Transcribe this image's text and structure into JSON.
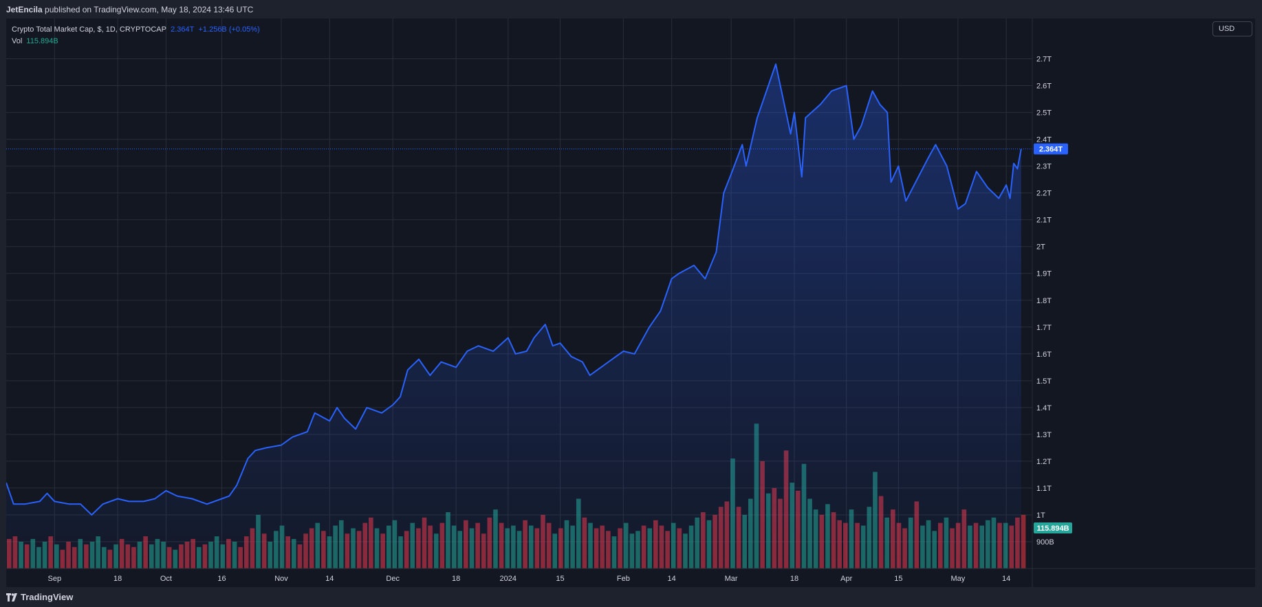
{
  "header": {
    "author": "JetEncila",
    "published_text": "published on TradingView.com, May 18, 2024 13:46 UTC"
  },
  "legend": {
    "symbol": "Crypto Total Market Cap, $, 1D, CRYPTOCAP",
    "last_value": "2.364T",
    "change": "+1.256B (+0.05%)",
    "vol_label": "Vol",
    "vol_value": "115.894B"
  },
  "currency_button": "USD",
  "footer": {
    "brand": "TradingView"
  },
  "colors": {
    "background": "#131722",
    "line": "#2962ff",
    "volume_up": "#22ab94",
    "volume_down": "#f23645",
    "grid": "#2a2e39",
    "text": "#d1d4dc"
  },
  "chart_data": {
    "type": "area",
    "title": "Crypto Total Market Cap, $, 1D, CRYPTOCAP",
    "y_unit": "T",
    "ylim": [
      0.8,
      2.85
    ],
    "y_ticks": [
      0.9,
      1,
      1.1,
      1.2,
      1.3,
      1.4,
      1.5,
      1.6,
      1.7,
      1.8,
      1.9,
      2,
      2.1,
      2.2,
      2.3,
      2.4,
      2.5,
      2.6,
      2.7
    ],
    "y_tick_labels": [
      "900B",
      "1T",
      "1.1T",
      "1.2T",
      "1.3T",
      "1.4T",
      "1.5T",
      "1.6T",
      "1.7T",
      "1.8T",
      "1.9T",
      "2T",
      "2.1T",
      "2.2T",
      "2.3T",
      "2.4T",
      "2.5T",
      "2.6T",
      "2.7T"
    ],
    "x_ticks": [
      {
        "date": "2023-09-01",
        "label": "Sep"
      },
      {
        "date": "2023-09-18",
        "label": "18"
      },
      {
        "date": "2023-10-01",
        "label": "Oct"
      },
      {
        "date": "2023-10-16",
        "label": "16"
      },
      {
        "date": "2023-11-01",
        "label": "Nov"
      },
      {
        "date": "2023-11-14",
        "label": "14"
      },
      {
        "date": "2023-12-01",
        "label": "Dec"
      },
      {
        "date": "2023-12-18",
        "label": "18"
      },
      {
        "date": "2024-01-01",
        "label": "2024"
      },
      {
        "date": "2024-01-15",
        "label": "15"
      },
      {
        "date": "2024-02-01",
        "label": "Feb"
      },
      {
        "date": "2024-02-14",
        "label": "14"
      },
      {
        "date": "2024-03-01",
        "label": "Mar"
      },
      {
        "date": "2024-03-18",
        "label": "18"
      },
      {
        "date": "2024-04-01",
        "label": "Apr"
      },
      {
        "date": "2024-04-15",
        "label": "15"
      },
      {
        "date": "2024-05-01",
        "label": "May"
      },
      {
        "date": "2024-05-14",
        "label": "14"
      }
    ],
    "x_start": "2023-08-19",
    "x_end": "2024-05-21",
    "last_price_label": "2.364T",
    "last_volume_label": "115.894B",
    "series": [
      {
        "name": "Crypto Total Market Cap",
        "kind": "line",
        "points": [
          [
            "2023-08-19",
            1.12
          ],
          [
            "2023-08-21",
            1.04
          ],
          [
            "2023-08-24",
            1.04
          ],
          [
            "2023-08-28",
            1.05
          ],
          [
            "2023-08-30",
            1.08
          ],
          [
            "2023-09-01",
            1.05
          ],
          [
            "2023-09-05",
            1.04
          ],
          [
            "2023-09-08",
            1.04
          ],
          [
            "2023-09-11",
            1.0
          ],
          [
            "2023-09-14",
            1.04
          ],
          [
            "2023-09-18",
            1.06
          ],
          [
            "2023-09-21",
            1.05
          ],
          [
            "2023-09-25",
            1.05
          ],
          [
            "2023-09-28",
            1.06
          ],
          [
            "2023-10-01",
            1.09
          ],
          [
            "2023-10-04",
            1.07
          ],
          [
            "2023-10-08",
            1.06
          ],
          [
            "2023-10-12",
            1.04
          ],
          [
            "2023-10-16",
            1.06
          ],
          [
            "2023-10-18",
            1.07
          ],
          [
            "2023-10-20",
            1.11
          ],
          [
            "2023-10-23",
            1.21
          ],
          [
            "2023-10-25",
            1.24
          ],
          [
            "2023-10-28",
            1.25
          ],
          [
            "2023-11-01",
            1.26
          ],
          [
            "2023-11-04",
            1.29
          ],
          [
            "2023-11-08",
            1.31
          ],
          [
            "2023-11-10",
            1.38
          ],
          [
            "2023-11-14",
            1.35
          ],
          [
            "2023-11-16",
            1.4
          ],
          [
            "2023-11-18",
            1.36
          ],
          [
            "2023-11-21",
            1.32
          ],
          [
            "2023-11-24",
            1.4
          ],
          [
            "2023-11-28",
            1.38
          ],
          [
            "2023-12-01",
            1.41
          ],
          [
            "2023-12-03",
            1.44
          ],
          [
            "2023-12-05",
            1.54
          ],
          [
            "2023-12-08",
            1.58
          ],
          [
            "2023-12-11",
            1.52
          ],
          [
            "2023-12-14",
            1.57
          ],
          [
            "2023-12-18",
            1.55
          ],
          [
            "2023-12-21",
            1.61
          ],
          [
            "2023-12-24",
            1.63
          ],
          [
            "2023-12-28",
            1.61
          ],
          [
            "2024-01-01",
            1.66
          ],
          [
            "2024-01-03",
            1.6
          ],
          [
            "2024-01-06",
            1.61
          ],
          [
            "2024-01-08",
            1.66
          ],
          [
            "2024-01-11",
            1.71
          ],
          [
            "2024-01-13",
            1.63
          ],
          [
            "2024-01-15",
            1.64
          ],
          [
            "2024-01-18",
            1.59
          ],
          [
            "2024-01-21",
            1.57
          ],
          [
            "2024-01-23",
            1.52
          ],
          [
            "2024-01-25",
            1.54
          ],
          [
            "2024-01-28",
            1.57
          ],
          [
            "2024-02-01",
            1.61
          ],
          [
            "2024-02-04",
            1.6
          ],
          [
            "2024-02-08",
            1.7
          ],
          [
            "2024-02-11",
            1.76
          ],
          [
            "2024-02-14",
            1.88
          ],
          [
            "2024-02-16",
            1.9
          ],
          [
            "2024-02-20",
            1.93
          ],
          [
            "2024-02-23",
            1.88
          ],
          [
            "2024-02-26",
            1.98
          ],
          [
            "2024-02-28",
            2.2
          ],
          [
            "2024-03-01",
            2.27
          ],
          [
            "2024-03-04",
            2.38
          ],
          [
            "2024-03-05",
            2.3
          ],
          [
            "2024-03-08",
            2.48
          ],
          [
            "2024-03-11",
            2.6
          ],
          [
            "2024-03-13",
            2.68
          ],
          [
            "2024-03-15",
            2.55
          ],
          [
            "2024-03-17",
            2.42
          ],
          [
            "2024-03-18",
            2.5
          ],
          [
            "2024-03-20",
            2.26
          ],
          [
            "2024-03-21",
            2.48
          ],
          [
            "2024-03-25",
            2.53
          ],
          [
            "2024-03-28",
            2.58
          ],
          [
            "2024-04-01",
            2.6
          ],
          [
            "2024-04-03",
            2.4
          ],
          [
            "2024-04-05",
            2.45
          ],
          [
            "2024-04-08",
            2.58
          ],
          [
            "2024-04-10",
            2.53
          ],
          [
            "2024-04-12",
            2.5
          ],
          [
            "2024-04-13",
            2.24
          ],
          [
            "2024-04-15",
            2.3
          ],
          [
            "2024-04-17",
            2.17
          ],
          [
            "2024-04-20",
            2.25
          ],
          [
            "2024-04-23",
            2.33
          ],
          [
            "2024-04-25",
            2.38
          ],
          [
            "2024-04-28",
            2.3
          ],
          [
            "2024-05-01",
            2.14
          ],
          [
            "2024-05-03",
            2.16
          ],
          [
            "2024-05-06",
            2.28
          ],
          [
            "2024-05-09",
            2.22
          ],
          [
            "2024-05-12",
            2.18
          ],
          [
            "2024-05-14",
            2.23
          ],
          [
            "2024-05-15",
            2.18
          ],
          [
            "2024-05-16",
            2.31
          ],
          [
            "2024-05-17",
            2.29
          ],
          [
            "2024-05-18",
            2.364
          ]
        ]
      },
      {
        "name": "Vol",
        "kind": "bar",
        "values": [
          0.91,
          0.92,
          0.9,
          0.89,
          0.91,
          0.88,
          0.9,
          0.92,
          0.89,
          0.87,
          0.9,
          0.88,
          0.91,
          0.89,
          0.9,
          0.92,
          0.88,
          0.87,
          0.89,
          0.91,
          0.89,
          0.88,
          0.9,
          0.92,
          0.89,
          0.91,
          0.9,
          0.88,
          0.87,
          0.89,
          0.9,
          0.91,
          0.88,
          0.89,
          0.9,
          0.92,
          0.89,
          0.91,
          0.9,
          0.88,
          0.92,
          0.95,
          1.0,
          0.93,
          0.9,
          0.94,
          0.96,
          0.92,
          0.91,
          0.89,
          0.93,
          0.95,
          0.97,
          0.94,
          0.92,
          0.96,
          0.98,
          0.93,
          0.95,
          0.94,
          0.97,
          0.99,
          0.95,
          0.93,
          0.96,
          0.98,
          0.92,
          0.94,
          0.97,
          0.95,
          0.99,
          0.96,
          0.93,
          0.97,
          1.01,
          0.96,
          0.94,
          0.98,
          0.95,
          0.97,
          0.93,
          0.99,
          1.02,
          0.97,
          0.95,
          0.96,
          0.94,
          0.98,
          0.96,
          0.95,
          1.0,
          0.97,
          0.93,
          0.95,
          0.98,
          0.96,
          1.06,
          0.99,
          0.97,
          0.95,
          0.96,
          0.94,
          0.92,
          0.95,
          0.97,
          0.93,
          0.94,
          0.96,
          0.95,
          0.98,
          0.96,
          0.94,
          0.97,
          0.95,
          0.93,
          0.96,
          0.99,
          1.01,
          0.98,
          1.0,
          1.03,
          1.05,
          1.21,
          1.03,
          1.0,
          1.06,
          1.34,
          1.2,
          1.08,
          1.1,
          1.06,
          1.24,
          1.12,
          1.09,
          1.19,
          1.06,
          1.02,
          1.0,
          1.04,
          1.01,
          0.98,
          0.97,
          1.02,
          0.97,
          0.96,
          1.03,
          1.16,
          1.07,
          0.99,
          1.02,
          0.97,
          0.95,
          0.99,
          1.05,
          0.96,
          0.98,
          0.94,
          0.97,
          0.99,
          0.95,
          0.97,
          1.02,
          0.96,
          0.97,
          0.96,
          0.98,
          0.99,
          0.97,
          0.97,
          0.96,
          0.99,
          1.0
        ]
      }
    ]
  }
}
